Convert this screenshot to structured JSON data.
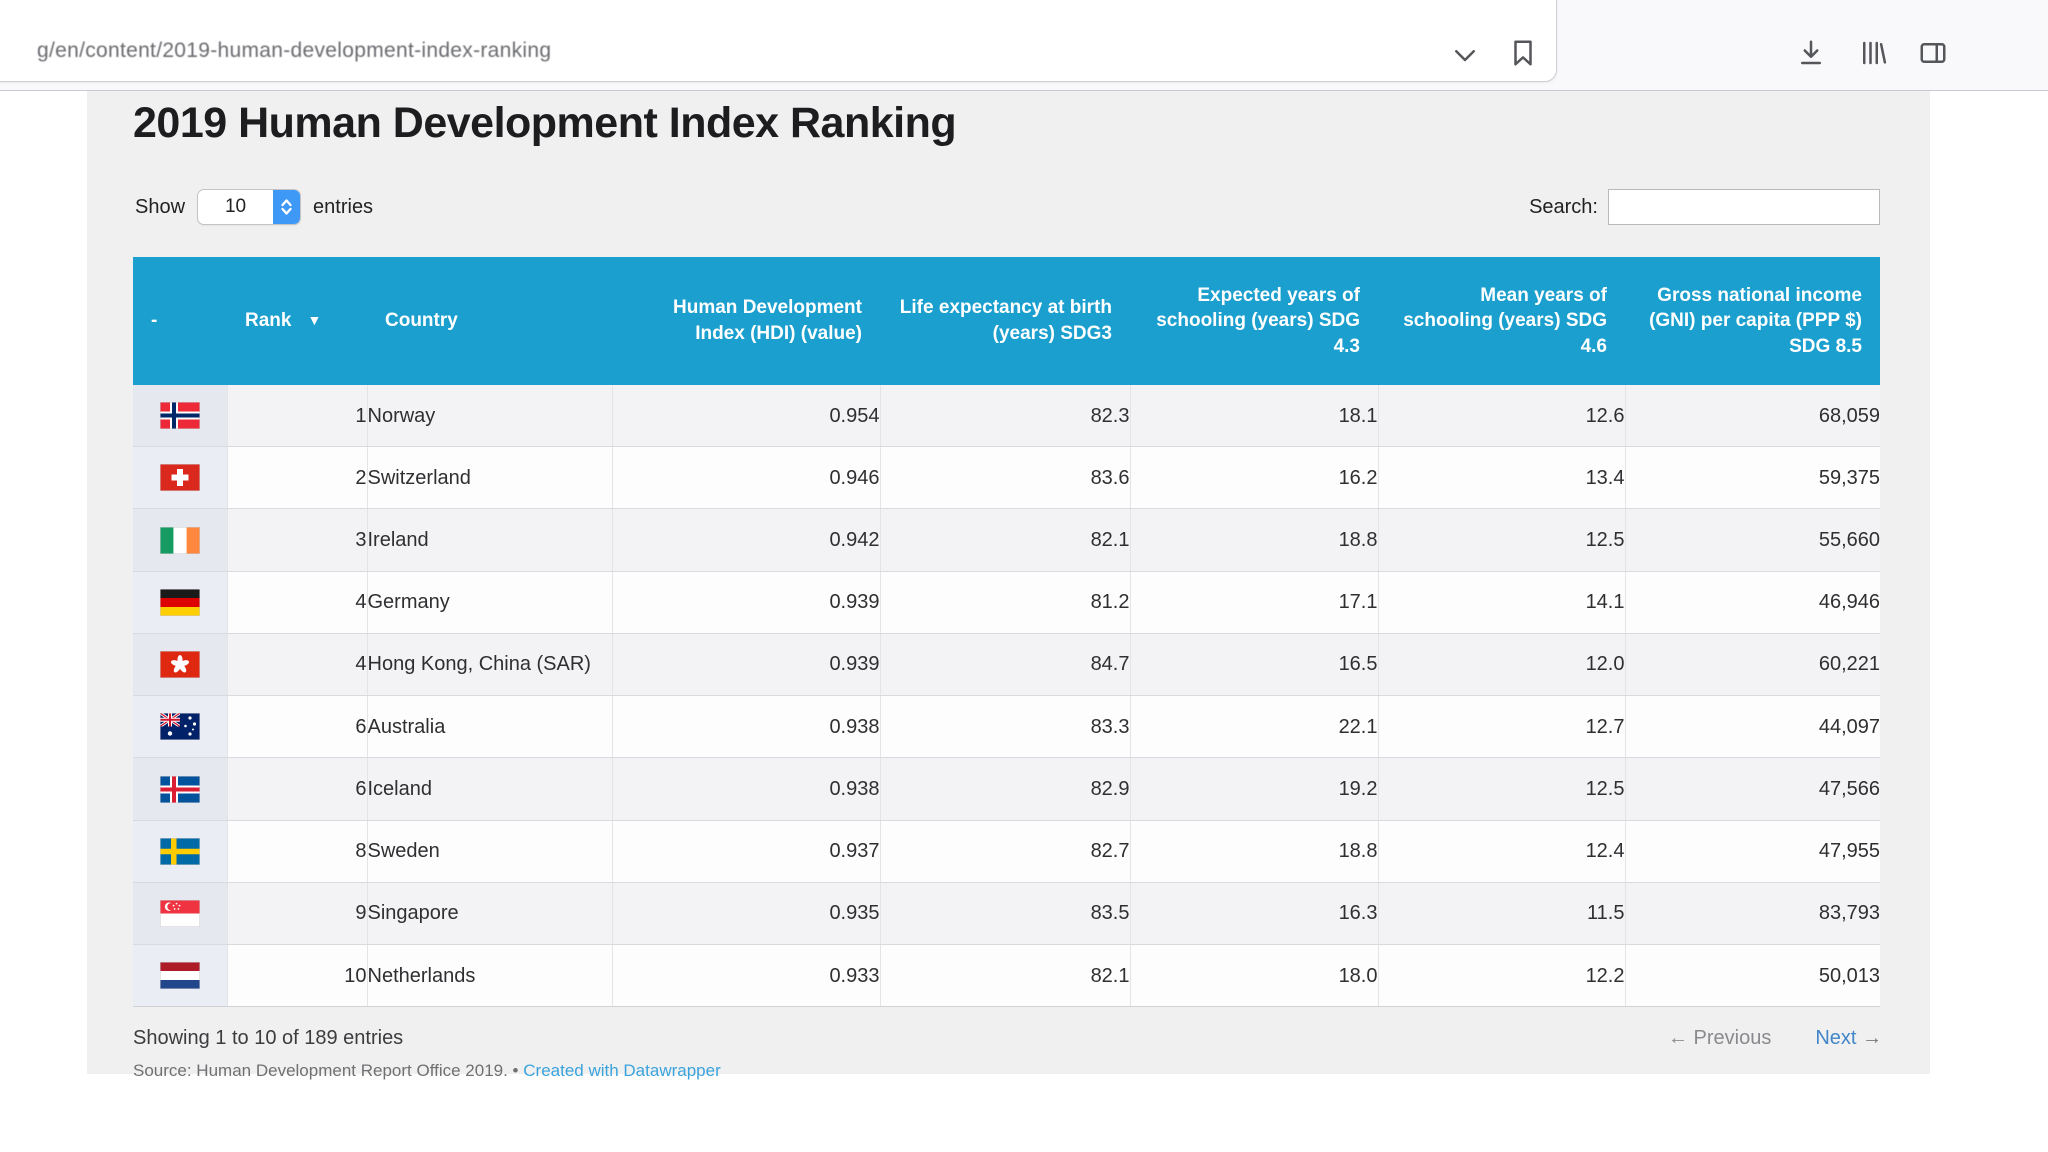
{
  "browser": {
    "url": "g/en/content/2019-human-development-index-ranking",
    "icons": [
      "chevron-down",
      "bookmark",
      "download",
      "library",
      "sidebar"
    ]
  },
  "page": {
    "title": "2019 Human Development Index Ranking",
    "show_before": "Show",
    "show_value": "10",
    "show_after": "entries",
    "search_label": "Search:",
    "search_value": "",
    "info": "Showing 1 to 10 of 189 entries",
    "prev_arrow": "←",
    "prev_label": "Previous",
    "next_label": "Next",
    "next_arrow": "→",
    "source_prefix": "Source: Human Development Report Office 2019. •",
    "source_link": "Created with Datawrapper"
  },
  "colors": {
    "header_bg": "#1b9fce",
    "link_blue": "#3aa3dc",
    "next_blue": "#4286c8",
    "select_blue": "#3d99f5",
    "flag_column_bg": "#e8eaf3",
    "stripe_row_bg": "#f3f3f5"
  },
  "table": {
    "sort_icon": "▼",
    "sorted_column_index": 1,
    "headers": [
      "-",
      "Rank",
      "Country",
      "Human Development Index (HDI) (value)",
      "Life expectancy at birth (years) SDG3",
      "Expected years of schooling (years) SDG 4.3",
      "Mean years of schooling (years) SDG 4.6",
      "Gross national income (GNI) per capita (PPP $) SDG 8.5"
    ],
    "rows": [
      {
        "flag": "norway",
        "rank": "1",
        "country": "Norway",
        "hdi": "0.954",
        "life": "82.3",
        "expected": "18.1",
        "mean": "12.6",
        "gni": "68,059"
      },
      {
        "flag": "switzerland",
        "rank": "2",
        "country": "Switzerland",
        "hdi": "0.946",
        "life": "83.6",
        "expected": "16.2",
        "mean": "13.4",
        "gni": "59,375"
      },
      {
        "flag": "ireland",
        "rank": "3",
        "country": "Ireland",
        "hdi": "0.942",
        "life": "82.1",
        "expected": "18.8",
        "mean": "12.5",
        "gni": "55,660"
      },
      {
        "flag": "germany",
        "rank": "4",
        "country": "Germany",
        "hdi": "0.939",
        "life": "81.2",
        "expected": "17.1",
        "mean": "14.1",
        "gni": "46,946"
      },
      {
        "flag": "hongkong",
        "rank": "4",
        "country": "Hong Kong, China (SAR)",
        "hdi": "0.939",
        "life": "84.7",
        "expected": "16.5",
        "mean": "12.0",
        "gni": "60,221"
      },
      {
        "flag": "australia",
        "rank": "6",
        "country": "Australia",
        "hdi": "0.938",
        "life": "83.3",
        "expected": "22.1",
        "mean": "12.7",
        "gni": "44,097"
      },
      {
        "flag": "iceland",
        "rank": "6",
        "country": "Iceland",
        "hdi": "0.938",
        "life": "82.9",
        "expected": "19.2",
        "mean": "12.5",
        "gni": "47,566"
      },
      {
        "flag": "sweden",
        "rank": "8",
        "country": "Sweden",
        "hdi": "0.937",
        "life": "82.7",
        "expected": "18.8",
        "mean": "12.4",
        "gni": "47,955"
      },
      {
        "flag": "singapore",
        "rank": "9",
        "country": "Singapore",
        "hdi": "0.935",
        "life": "83.5",
        "expected": "16.3",
        "mean": "11.5",
        "gni": "83,793"
      },
      {
        "flag": "netherlands",
        "rank": "10",
        "country": "Netherlands",
        "hdi": "0.933",
        "life": "82.1",
        "expected": "18.0",
        "mean": "12.2",
        "gni": "50,013"
      }
    ]
  }
}
